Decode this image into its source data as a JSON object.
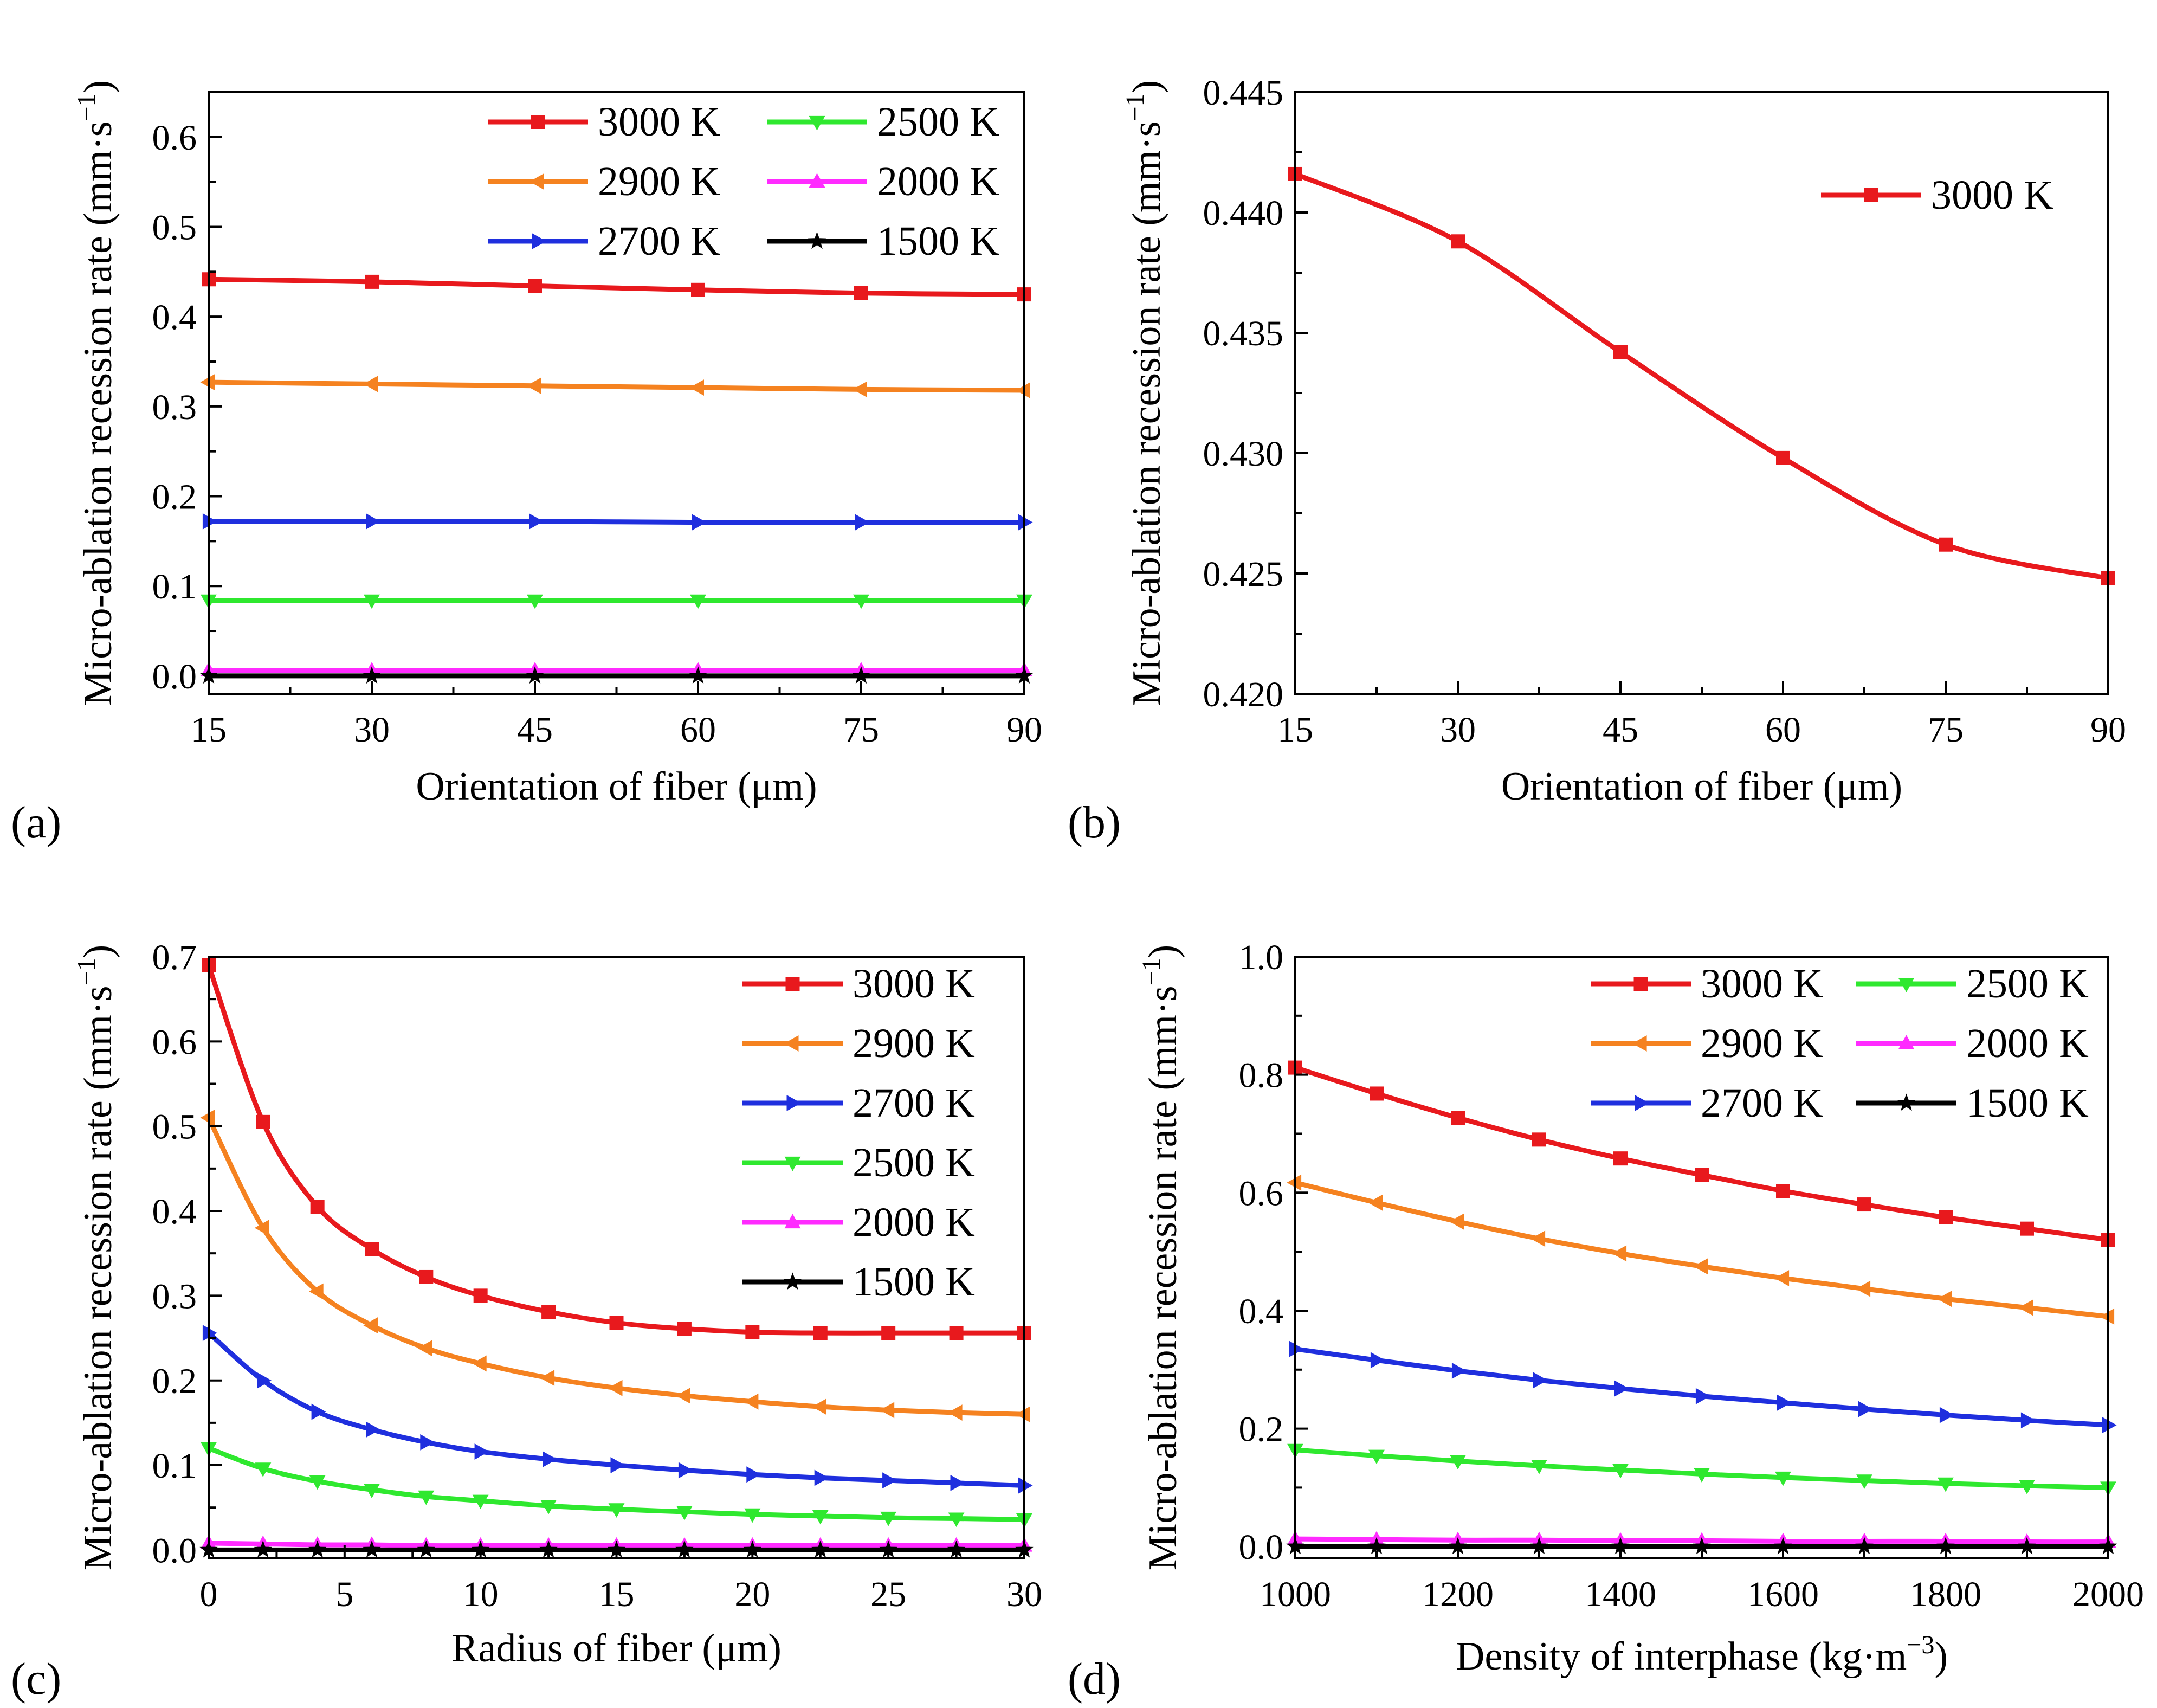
{
  "chart_data": [
    {
      "type": "line",
      "panel_label": "(a)",
      "xlabel": "Orientation of fiber (μm)",
      "ylabel": "Micro-ablation recession rate (mm·s",
      "ylabel_sup": "−1",
      "ylabel_close": ")",
      "xlim": [
        15,
        90
      ],
      "ylim": [
        -0.02,
        0.65
      ],
      "xticks": [
        15,
        30,
        45,
        60,
        75,
        90
      ],
      "xtick_labels": [
        "15",
        "30",
        "45",
        "60",
        "75",
        "90"
      ],
      "yticks": [
        0.0,
        0.1,
        0.2,
        0.3,
        0.4,
        0.5,
        0.6
      ],
      "ytick_labels": [
        "0.0",
        "0.1",
        "0.2",
        "0.3",
        "0.4",
        "0.5",
        "0.6"
      ],
      "grid": false,
      "legend_position": "top-right",
      "legend_columns": 2,
      "x": [
        15,
        30,
        45,
        60,
        75,
        90
      ],
      "series": [
        {
          "name": "3000 K",
          "color": "#e8191d",
          "marker": "square",
          "values": [
            0.4416,
            0.4388,
            0.4342,
            0.4298,
            0.4262,
            0.4248
          ]
        },
        {
          "name": "2900 K",
          "color": "#f58220",
          "marker": "triangle-left",
          "values": [
            0.327,
            0.325,
            0.323,
            0.321,
            0.319,
            0.318
          ]
        },
        {
          "name": "2700 K",
          "color": "#1f2fde",
          "marker": "triangle-right",
          "values": [
            0.172,
            0.172,
            0.172,
            0.171,
            0.171,
            0.171
          ]
        },
        {
          "name": "2500 K",
          "color": "#2fe82f",
          "marker": "triangle-down",
          "values": [
            0.084,
            0.084,
            0.084,
            0.084,
            0.084,
            0.084
          ]
        },
        {
          "name": "2000 K",
          "color": "#ff2bff",
          "marker": "triangle-up",
          "values": [
            0.006,
            0.006,
            0.006,
            0.006,
            0.006,
            0.006
          ]
        },
        {
          "name": "1500 K",
          "color": "#000000",
          "marker": "star",
          "values": [
            0.0,
            0.0,
            0.0,
            0.0,
            0.0,
            0.0
          ]
        }
      ]
    },
    {
      "type": "line",
      "panel_label": "(b)",
      "xlabel": "Orientation of fiber (μm)",
      "ylabel": "Micro-ablation recession rate (mm·s",
      "ylabel_sup": "−1",
      "ylabel_close": ")",
      "xlim": [
        15,
        90
      ],
      "ylim": [
        0.42,
        0.445
      ],
      "xticks": [
        15,
        30,
        45,
        60,
        75,
        90
      ],
      "xtick_labels": [
        "15",
        "30",
        "45",
        "60",
        "75",
        "90"
      ],
      "yticks": [
        0.42,
        0.425,
        0.43,
        0.435,
        0.44,
        0.445
      ],
      "ytick_labels": [
        "0.420",
        "0.425",
        "0.430",
        "0.435",
        "0.440",
        "0.445"
      ],
      "grid": false,
      "legend_position": "top-right",
      "legend_columns": 1,
      "x": [
        15,
        30,
        45,
        60,
        75,
        90
      ],
      "series": [
        {
          "name": "3000 K",
          "color": "#e8191d",
          "marker": "square",
          "values": [
            0.4416,
            0.4388,
            0.4342,
            0.4298,
            0.4262,
            0.4248
          ]
        }
      ]
    },
    {
      "type": "line",
      "panel_label": "(c)",
      "xlabel": "Radius of fiber (μm)",
      "ylabel": "Micro-ablation recession rate (mm·s",
      "ylabel_sup": "−1",
      "ylabel_close": ")",
      "xlim": [
        0,
        30
      ],
      "ylim": [
        -0.01,
        0.7
      ],
      "xticks": [
        0,
        5,
        10,
        15,
        20,
        25,
        30
      ],
      "xtick_labels": [
        "0",
        "5",
        "10",
        "15",
        "20",
        "25",
        "30"
      ],
      "yticks": [
        0.0,
        0.1,
        0.2,
        0.3,
        0.4,
        0.5,
        0.6,
        0.7
      ],
      "ytick_labels": [
        "0.0",
        "0.1",
        "0.2",
        "0.3",
        "0.4",
        "0.5",
        "0.6",
        "0.7"
      ],
      "grid": false,
      "legend_position": "top-right",
      "legend_columns": 1,
      "x": [
        0,
        2,
        4,
        6,
        8,
        10,
        12.5,
        15,
        17.5,
        20,
        22.5,
        25,
        27.5,
        30
      ],
      "series": [
        {
          "name": "3000 K",
          "color": "#e8191d",
          "marker": "square",
          "values": [
            0.69,
            0.505,
            0.405,
            0.355,
            0.322,
            0.3,
            0.281,
            0.268,
            0.261,
            0.257,
            0.256,
            0.256,
            0.256,
            0.256
          ]
        },
        {
          "name": "2900 K",
          "color": "#f58220",
          "marker": "triangle-left",
          "values": [
            0.51,
            0.38,
            0.305,
            0.265,
            0.238,
            0.22,
            0.203,
            0.191,
            0.182,
            0.175,
            0.169,
            0.165,
            0.162,
            0.16
          ]
        },
        {
          "name": "2700 K",
          "color": "#1f2fde",
          "marker": "triangle-right",
          "values": [
            0.256,
            0.2,
            0.163,
            0.142,
            0.127,
            0.116,
            0.107,
            0.1,
            0.094,
            0.089,
            0.085,
            0.082,
            0.079,
            0.076
          ]
        },
        {
          "name": "2500 K",
          "color": "#2fe82f",
          "marker": "triangle-down",
          "values": [
            0.12,
            0.096,
            0.081,
            0.071,
            0.063,
            0.058,
            0.052,
            0.048,
            0.045,
            0.042,
            0.04,
            0.038,
            0.037,
            0.036
          ]
        },
        {
          "name": "2000 K",
          "color": "#ff2bff",
          "marker": "triangle-up",
          "values": [
            0.008,
            0.007,
            0.006,
            0.006,
            0.005,
            0.005,
            0.005,
            0.005,
            0.005,
            0.005,
            0.005,
            0.005,
            0.005,
            0.005
          ]
        },
        {
          "name": "1500 K",
          "color": "#000000",
          "marker": "star",
          "values": [
            0.0,
            0.0,
            0.0,
            0.0,
            0.0,
            0.0,
            0.0,
            0.0,
            0.0,
            0.0,
            0.0,
            0.0,
            0.0,
            0.0
          ]
        }
      ]
    },
    {
      "type": "line",
      "panel_label": "(d)",
      "xlabel": "Density of interphase (kg·m",
      "xlabel_sup": "−3",
      "xlabel_close": ")",
      "ylabel": "Micro-ablation recession rate (mm·s",
      "ylabel_sup": "−1",
      "ylabel_close": ")",
      "xlim": [
        1000,
        2000
      ],
      "ylim": [
        -0.02,
        1.0
      ],
      "xticks": [
        1000,
        1200,
        1400,
        1600,
        1800,
        2000
      ],
      "xtick_labels": [
        "1000",
        "1200",
        "1400",
        "1600",
        "1800",
        "2000"
      ],
      "yticks": [
        0.0,
        0.2,
        0.4,
        0.6,
        0.8,
        1.0
      ],
      "ytick_labels": [
        "0.0",
        "0.2",
        "0.4",
        "0.6",
        "0.8",
        "1.0"
      ],
      "grid": false,
      "legend_position": "top-right",
      "legend_columns": 2,
      "x": [
        1000,
        1100,
        1200,
        1300,
        1400,
        1500,
        1600,
        1700,
        1800,
        1900,
        2000
      ],
      "series": [
        {
          "name": "3000 K",
          "color": "#e8191d",
          "marker": "square",
          "values": [
            0.812,
            0.768,
            0.727,
            0.69,
            0.658,
            0.63,
            0.603,
            0.58,
            0.558,
            0.539,
            0.52
          ]
        },
        {
          "name": "2900 K",
          "color": "#f58220",
          "marker": "triangle-left",
          "values": [
            0.617,
            0.583,
            0.551,
            0.522,
            0.497,
            0.475,
            0.455,
            0.437,
            0.42,
            0.405,
            0.39
          ]
        },
        {
          "name": "2700 K",
          "color": "#1f2fde",
          "marker": "triangle-right",
          "values": [
            0.335,
            0.316,
            0.298,
            0.282,
            0.268,
            0.255,
            0.244,
            0.233,
            0.223,
            0.214,
            0.206
          ]
        },
        {
          "name": "2500 K",
          "color": "#2fe82f",
          "marker": "triangle-down",
          "values": [
            0.164,
            0.154,
            0.145,
            0.137,
            0.13,
            0.123,
            0.117,
            0.112,
            0.107,
            0.103,
            0.1
          ]
        },
        {
          "name": "2000 K",
          "color": "#ff2bff",
          "marker": "triangle-up",
          "values": [
            0.013,
            0.012,
            0.011,
            0.011,
            0.01,
            0.01,
            0.009,
            0.009,
            0.009,
            0.008,
            0.008
          ]
        },
        {
          "name": "1500 K",
          "color": "#000000",
          "marker": "star",
          "values": [
            0.0,
            0.0,
            0.0,
            0.0,
            0.0,
            0.0,
            0.0,
            0.0,
            0.0,
            0.0,
            0.0
          ]
        }
      ]
    }
  ]
}
